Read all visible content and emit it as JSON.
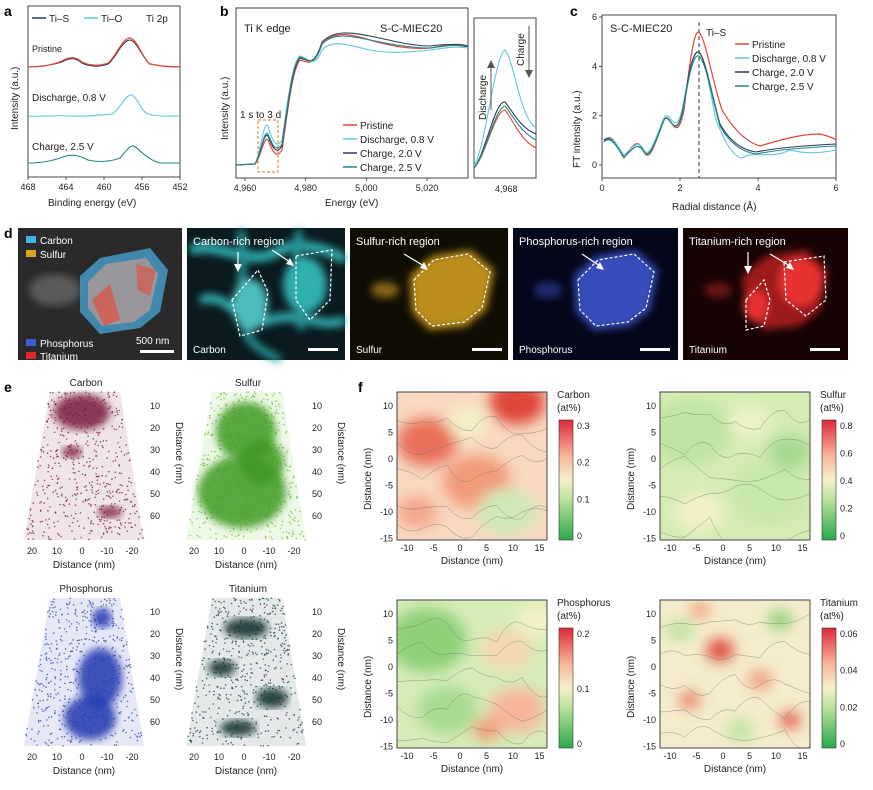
{
  "panels": {
    "a": {
      "label": "a",
      "legend": [
        "Ti–S",
        "Ti–O"
      ],
      "edge": "Ti 2p",
      "ylabel": "Intensity (a.u.)",
      "xlabel": "Binding energy (eV)",
      "xticks": [
        "468",
        "464",
        "460",
        "456",
        "452"
      ],
      "traces": [
        "Pristine",
        "Discharge, 0.8 V",
        "Charge, 2.5 V"
      ]
    },
    "b": {
      "label": "b",
      "title": "Ti K edge",
      "sample": "S-C-MIEC20",
      "ylabel": "Intensity (a.u.)",
      "xlabel": "Energy (eV)",
      "xticks": [
        "4,960",
        "4,980",
        "5,000",
        "5,020"
      ],
      "legend": [
        "Pristine",
        "Discharge, 0.8 V",
        "Charge, 2.0 V",
        "Charge, 2.5 V"
      ],
      "annot": "1 s to 3 d",
      "inset_xtick": "4,968",
      "inset_up": "Discharge",
      "inset_down": "Charge"
    },
    "c": {
      "label": "c",
      "sample": "S-C-MIEC20",
      "peak": "Ti–S",
      "ylabel": "FT intensity (a.u.)",
      "xlabel": "Radial distance (Å)",
      "yticks": [
        "0",
        "2",
        "4",
        "6"
      ],
      "xticks": [
        "0",
        "2",
        "4",
        "6"
      ],
      "legend": [
        "Pristine",
        "Discharge, 0.8 V",
        "Charge, 2.0 V",
        "Charge, 2.5 V"
      ]
    },
    "d": {
      "label": "d",
      "legend": [
        "Carbon",
        "Sulfur",
        "Phosphorus",
        "Titanium"
      ],
      "scale": "500 nm",
      "maps": [
        {
          "title": "Carbon-rich region",
          "el": "Carbon"
        },
        {
          "title": "Sulfur-rich region",
          "el": "Sulfur"
        },
        {
          "title": "Phosphorus-rich region",
          "el": "Phosphorus"
        },
        {
          "title": "Titanium-rich region",
          "el": "Titanium"
        }
      ]
    },
    "e": {
      "label": "e",
      "elements": [
        "Carbon",
        "Sulfur",
        "Phosphorus",
        "Titanium"
      ],
      "xlabel": "Distance (nm)",
      "ylabel": "Distance (nm)",
      "xticks": [
        "20",
        "10",
        "0",
        "-10",
        "-20"
      ],
      "yticks": [
        "10",
        "20",
        "30",
        "40",
        "50",
        "60"
      ]
    },
    "f": {
      "label": "f",
      "xlabel": "Distance (nm)",
      "ylabel": "Distance (nm)",
      "xticks": [
        "-10",
        "-5",
        "0",
        "5",
        "10",
        "15"
      ],
      "yticks": [
        "10",
        "5",
        "0",
        "-5",
        "-10",
        "-15"
      ],
      "maps": [
        {
          "title": "Carbon",
          "unit": "(at%)",
          "cticks": [
            "0.3",
            "0.2",
            "0.1",
            "0"
          ]
        },
        {
          "title": "Sulfur",
          "unit": "(at%)",
          "cticks": [
            "0.8",
            "0.6",
            "0.4",
            "0.2",
            "0"
          ]
        },
        {
          "title": "Phosphorus",
          "unit": "(at%)",
          "cticks": [
            "0.2",
            "0.1",
            "0"
          ]
        },
        {
          "title": "Titanium",
          "unit": "(at%)",
          "cticks": [
            "0.06",
            "0.04",
            "0.02",
            "0"
          ]
        }
      ]
    }
  },
  "colors": {
    "pristine": "#e0463a",
    "discharge": "#5fc8d8",
    "charge20": "#2e3a5c",
    "charge25": "#1f8a84",
    "tis": "#2e3a5c",
    "tio": "#5fc8d8",
    "c_map": "#38c8c8",
    "s_map": "#d9a520",
    "p_map": "#3e5bd8",
    "ti_map": "#e02828",
    "carbon3d": "#7a1f3f",
    "sulfur3d": "#6cc23a",
    "phos3d": "#3245b0",
    "ti3d": "#1d4040"
  }
}
